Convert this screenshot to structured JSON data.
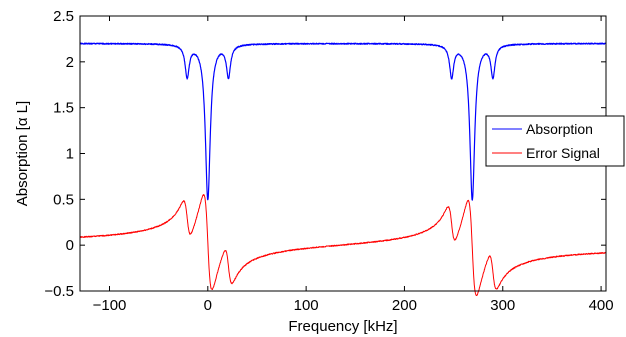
{
  "chart_data": {
    "type": "line",
    "title": "",
    "xlabel": "Frequency [kHz]",
    "ylabel": "Absorption [α L]",
    "xlim": [
      -130,
      405
    ],
    "ylim": [
      -0.5,
      2.5
    ],
    "xticks": [
      -100,
      0,
      100,
      200,
      300,
      400
    ],
    "xtick_labels": [
      "−100",
      "0",
      "100",
      "200",
      "300",
      "400"
    ],
    "yticks": [
      -0.5,
      0,
      0.5,
      1,
      1.5,
      2,
      2.5
    ],
    "ytick_labels": [
      "−0.5",
      "0",
      "0.5",
      "1",
      "1.5",
      "2",
      "2.5"
    ],
    "grid": false,
    "legend_position": "right",
    "series": [
      {
        "name": "Absorption",
        "color": "#0000ff",
        "baseline": 2.2,
        "dips": [
          {
            "center": -21,
            "depth": 0.35,
            "width": 2.5
          },
          {
            "center": 0,
            "depth": 1.7,
            "width": 3.0
          },
          {
            "center": 21,
            "depth": 0.35,
            "width": 2.5
          },
          {
            "center": 248,
            "depth": 0.35,
            "width": 2.5
          },
          {
            "center": 269,
            "depth": 1.7,
            "width": 3.0
          },
          {
            "center": 290,
            "depth": 0.35,
            "width": 2.5
          }
        ]
      },
      {
        "name": "Error Signal",
        "color": "#ff0000",
        "baseline": 0,
        "dispersions": [
          {
            "center": -21,
            "amplitude": 0.22,
            "width": 4.0
          },
          {
            "center": 0,
            "amplitude": 0.55,
            "width": 4.5
          },
          {
            "center": 21,
            "amplitude": 0.22,
            "width": 4.0
          },
          {
            "center": 248,
            "amplitude": 0.22,
            "width": 4.0
          },
          {
            "center": 269,
            "amplitude": 0.55,
            "width": 4.5
          },
          {
            "center": 290,
            "amplitude": 0.22,
            "width": 4.0
          }
        ]
      }
    ]
  }
}
